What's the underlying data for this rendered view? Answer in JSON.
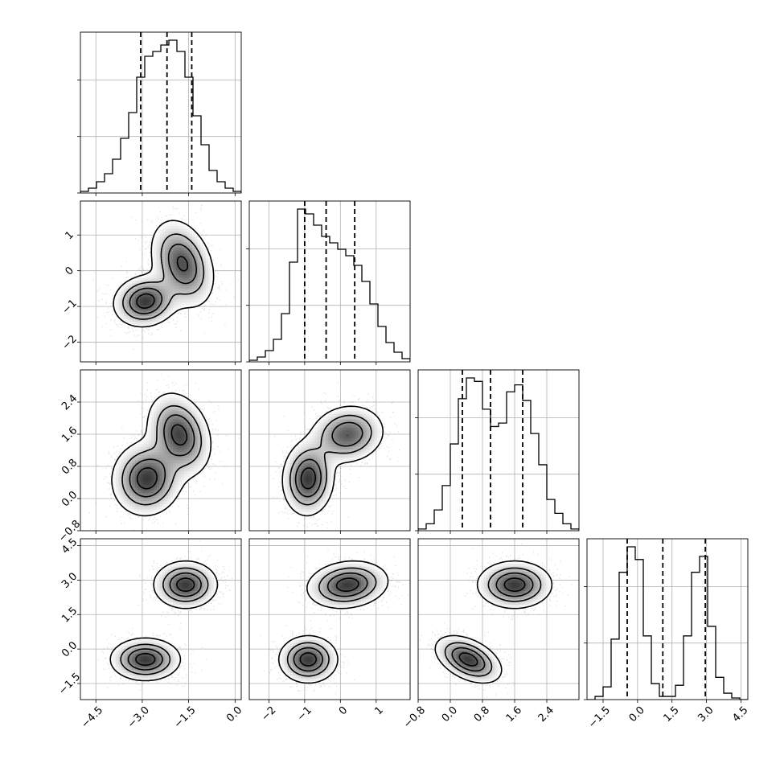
{
  "chart_data": {
    "type": "corner",
    "n_params": 4,
    "colors": {
      "line": "#000000",
      "grid": "#b0b0b0",
      "points": "#7a7a7a",
      "background": "#ffffff"
    },
    "grid": true,
    "params": [
      {
        "index": 0,
        "range": [
          -5.0,
          0.2
        ],
        "ticks": [
          -4.5,
          -3.0,
          -1.5,
          0.0
        ],
        "tick_labels": [
          "−4.5",
          "−3.0",
          "−1.5",
          "0.0"
        ],
        "quantiles": [
          -3.05,
          -2.2,
          -1.4
        ],
        "hist_counts": [
          1,
          3,
          7,
          12,
          21,
          34,
          50,
          72,
          85,
          88,
          92,
          95,
          88,
          72,
          48,
          30,
          14,
          7,
          3,
          1
        ]
      },
      {
        "index": 1,
        "range": [
          -2.55,
          1.95
        ],
        "ticks": [
          -2,
          -1,
          0,
          1
        ],
        "tick_labels": [
          "−2",
          "−1",
          "0",
          "1"
        ],
        "quantiles": [
          -1.0,
          -0.4,
          0.4
        ],
        "hist_counts": [
          1,
          3,
          7,
          14,
          30,
          62,
          95,
          92,
          85,
          78,
          74,
          70,
          66,
          60,
          50,
          36,
          22,
          12,
          6,
          2
        ]
      },
      {
        "index": 2,
        "range": [
          -0.8,
          3.2
        ],
        "ticks": [
          -0.8,
          0.0,
          0.8,
          1.6,
          2.4
        ],
        "tick_labels": [
          "−0.8",
          "0.0",
          "0.8",
          "1.6",
          "2.4"
        ],
        "quantiles": [
          0.3,
          1.0,
          1.8
        ],
        "hist_counts": [
          1,
          4,
          12,
          26,
          50,
          76,
          88,
          86,
          70,
          60,
          62,
          80,
          84,
          75,
          56,
          38,
          18,
          10,
          4,
          1
        ]
      },
      {
        "index": 3,
        "range": [
          -2.2,
          4.8
        ],
        "ticks": [
          -1.5,
          0.0,
          1.5,
          3.0,
          4.5
        ],
        "tick_labels": [
          "−1.5",
          "0.0",
          "1.5",
          "3.0",
          "4.5"
        ],
        "quantiles": [
          -0.45,
          1.1,
          2.95
        ],
        "hist_counts": [
          0,
          2,
          8,
          38,
          80,
          96,
          88,
          40,
          10,
          2,
          2,
          9,
          40,
          80,
          90,
          46,
          14,
          4,
          1,
          0
        ]
      }
    ],
    "pairs": [
      {
        "x": 0,
        "y": 1,
        "yticks": [
          -2,
          -1,
          0,
          1
        ],
        "ytick_labels": [
          "−2",
          "−1",
          "0",
          "1"
        ],
        "modes": [
          {
            "cx": -2.9,
            "cy": -0.85,
            "sx": 0.5,
            "sy": 0.35,
            "rho": 0.1,
            "w": 1.0
          },
          {
            "cx": -1.7,
            "cy": 0.2,
            "sx": 0.5,
            "sy": 0.6,
            "rho": -0.3,
            "w": 0.9
          }
        ]
      },
      {
        "x": 0,
        "y": 2,
        "yticks": [
          -0.8,
          0.0,
          0.8,
          1.6,
          2.4
        ],
        "ytick_labels": [
          "−0.8",
          "0.0",
          "0.8",
          "1.6",
          "2.4"
        ],
        "modes": [
          {
            "cx": -2.85,
            "cy": 0.5,
            "sx": 0.55,
            "sy": 0.45,
            "rho": 0.05,
            "w": 1.0
          },
          {
            "cx": -1.8,
            "cy": 1.6,
            "sx": 0.5,
            "sy": 0.5,
            "rho": -0.25,
            "w": 0.95
          }
        ]
      },
      {
        "x": 1,
        "y": 2,
        "modes": [
          {
            "cx": -0.9,
            "cy": 0.5,
            "sx": 0.35,
            "sy": 0.45,
            "rho": 0.05,
            "w": 1.0
          },
          {
            "cx": 0.2,
            "cy": 1.6,
            "sx": 0.5,
            "sy": 0.35,
            "rho": 0.1,
            "w": 0.85
          }
        ]
      },
      {
        "x": 0,
        "y": 3,
        "yticks": [
          -1.5,
          0.0,
          1.5,
          3.0,
          4.5
        ],
        "ytick_labels": [
          "−1.5",
          "0.0",
          "1.5",
          "3.0",
          "4.5"
        ],
        "modes": [
          {
            "cx": -2.9,
            "cy": -0.45,
            "sx": 0.55,
            "sy": 0.45,
            "rho": 0.0,
            "w": 1.0
          },
          {
            "cx": -1.6,
            "cy": 2.8,
            "sx": 0.5,
            "sy": 0.5,
            "rho": 0.0,
            "w": 1.0
          }
        ]
      },
      {
        "x": 1,
        "y": 3,
        "modes": [
          {
            "cx": -0.9,
            "cy": -0.45,
            "sx": 0.4,
            "sy": 0.5,
            "rho": 0.0,
            "w": 1.0
          },
          {
            "cx": 0.2,
            "cy": 2.8,
            "sx": 0.55,
            "sy": 0.5,
            "rho": 0.15,
            "w": 1.0
          }
        ]
      },
      {
        "x": 2,
        "y": 3,
        "modes": [
          {
            "cx": 0.45,
            "cy": -0.45,
            "sx": 0.4,
            "sy": 0.5,
            "rho": -0.45,
            "w": 1.0
          },
          {
            "cx": 1.6,
            "cy": 2.8,
            "sx": 0.45,
            "sy": 0.5,
            "rho": 0.0,
            "w": 1.0
          }
        ]
      }
    ]
  }
}
